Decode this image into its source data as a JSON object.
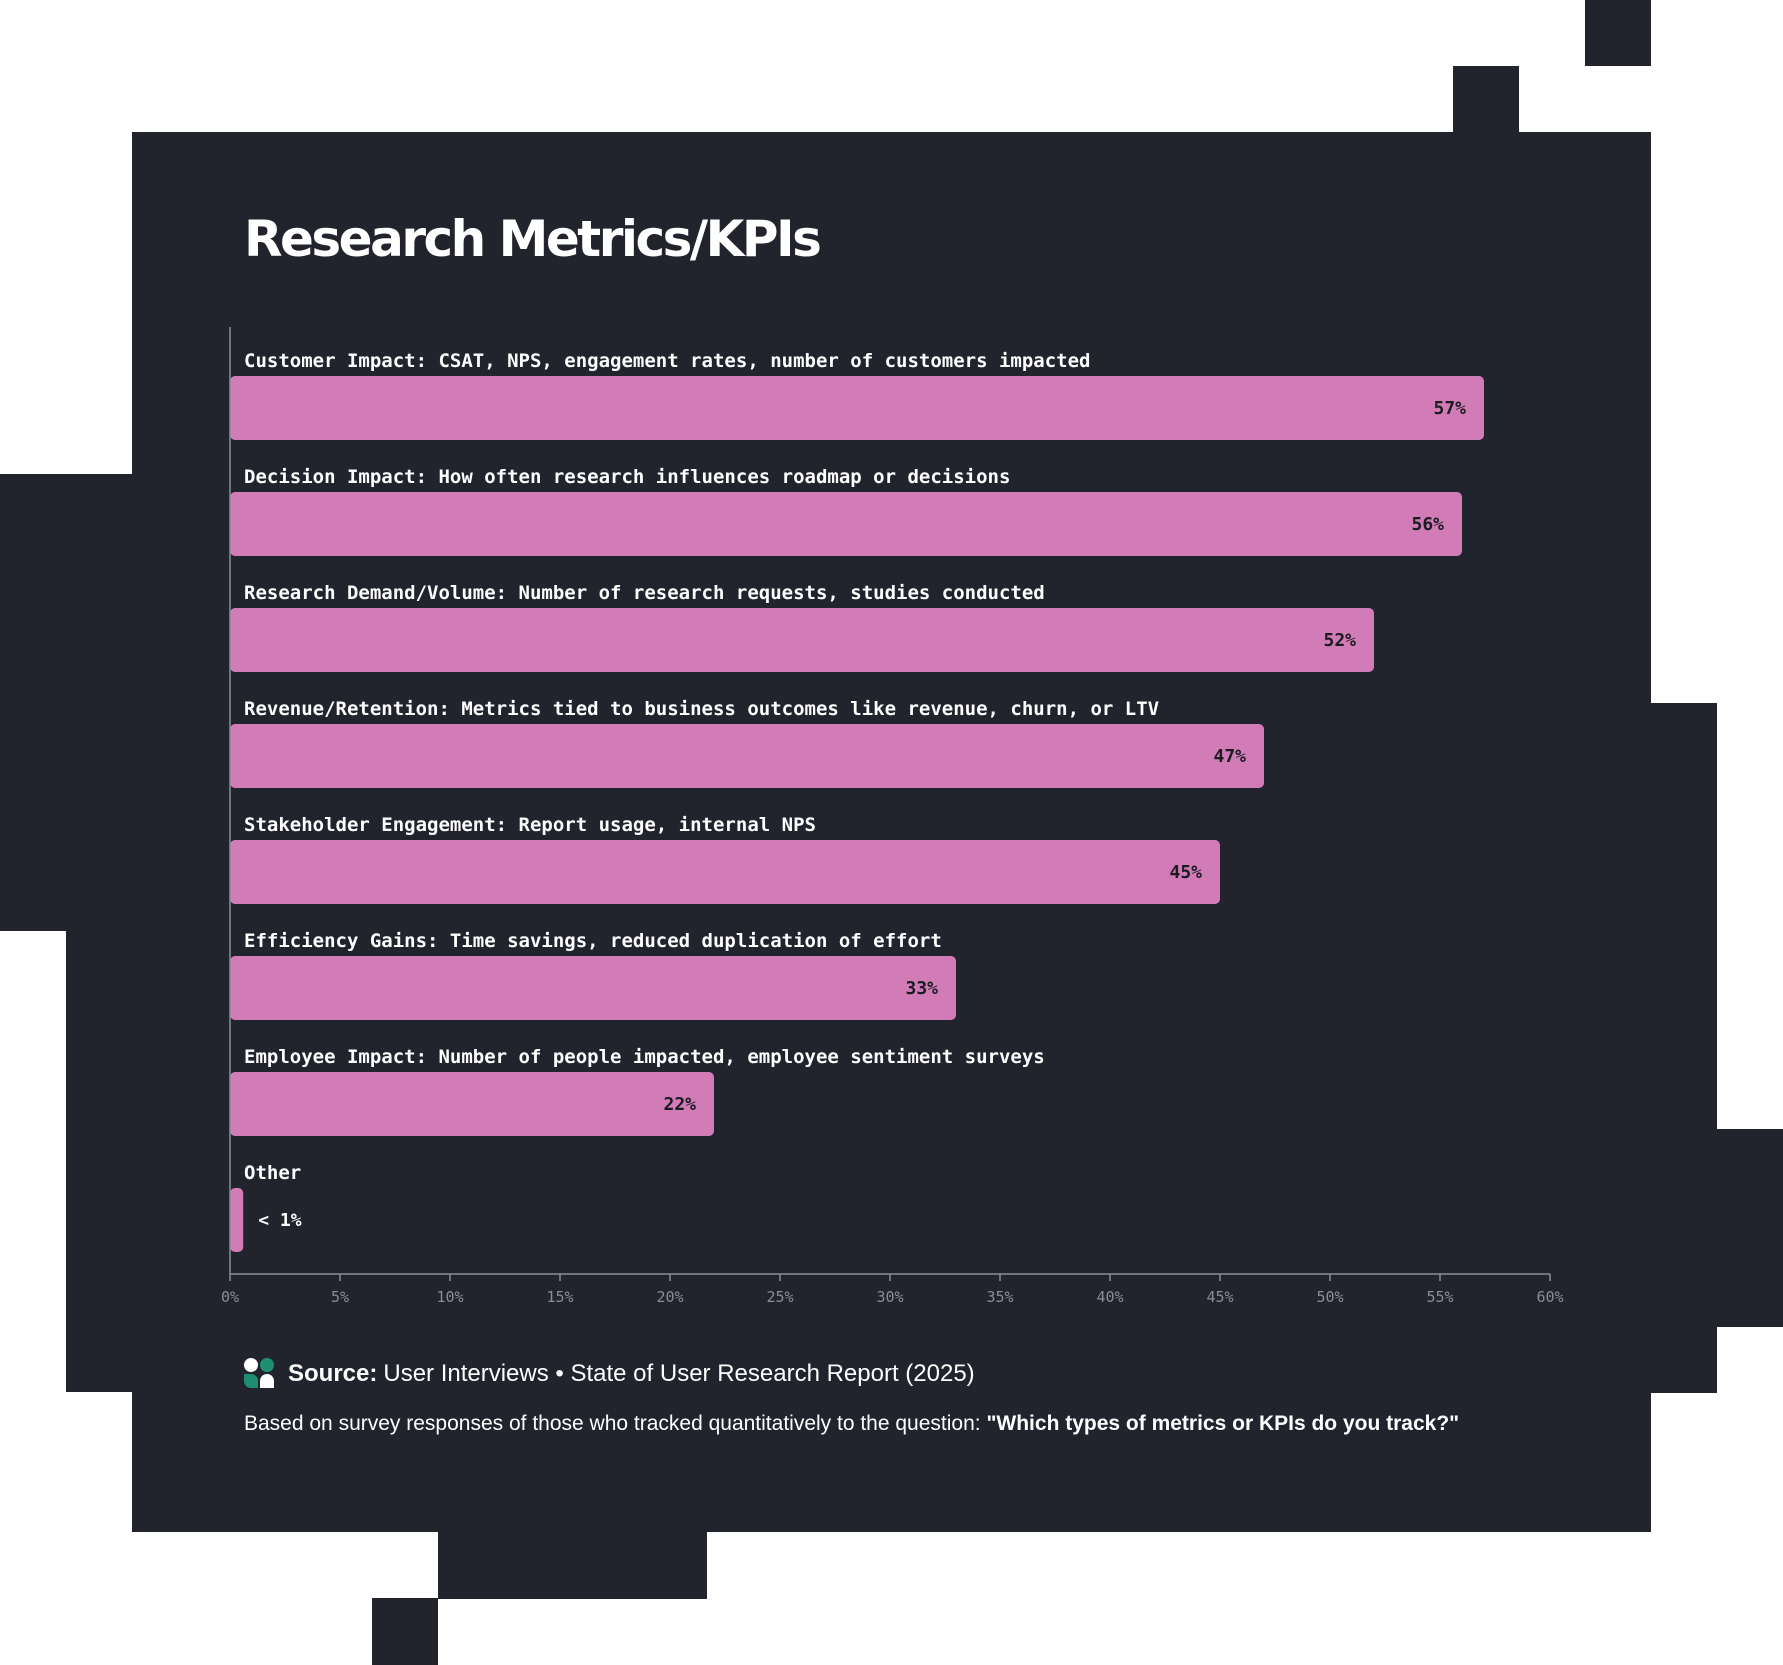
{
  "colors": {
    "background": "#21232d",
    "bar": "#d17bb7",
    "axis": "#8a8d98",
    "text": "#ffffff",
    "value_text": "#1b1b22",
    "logo_green": "#1f8f74"
  },
  "icons": {
    "source_logo": "user-interviews-logo-icon"
  },
  "chart_data": {
    "type": "bar",
    "orientation": "horizontal",
    "title": "Research Metrics/KPIs",
    "categories": [
      "Customer Impact: CSAT, NPS, engagement rates, number of customers impacted",
      "Decision Impact: How often research influences roadmap or decisions",
      "Research Demand/Volume: Number of research requests, studies conducted",
      "Revenue/Retention: Metrics tied to business outcomes like revenue, churn, or LTV",
      "Stakeholder Engagement: Report usage, internal NPS",
      "Efficiency Gains: Time savings, reduced duplication of effort",
      "Employee Impact: Number of people impacted, employee sentiment surveys",
      "Other"
    ],
    "values": [
      57,
      56,
      52,
      47,
      45,
      33,
      22,
      0.6
    ],
    "value_labels": [
      "57%",
      "56%",
      "52%",
      "47%",
      "45%",
      "33%",
      "22%",
      "< 1%"
    ],
    "xlim": [
      0,
      60
    ],
    "x_ticks": [
      0,
      5,
      10,
      15,
      20,
      25,
      30,
      35,
      40,
      45,
      50,
      55,
      60
    ],
    "x_tick_labels": [
      "0%",
      "5%",
      "10%",
      "15%",
      "20%",
      "25%",
      "30%",
      "35%",
      "40%",
      "45%",
      "50%",
      "55%",
      "60%"
    ],
    "grid": false,
    "legend": "none"
  },
  "source": {
    "label": "Source:",
    "text": "User Interviews • State of User Research Report (2025)"
  },
  "note": {
    "prefix": "Based on survey responses of those who tracked quantitatively to the question: ",
    "question": "\"Which types of metrics or KPIs do you track?\""
  }
}
